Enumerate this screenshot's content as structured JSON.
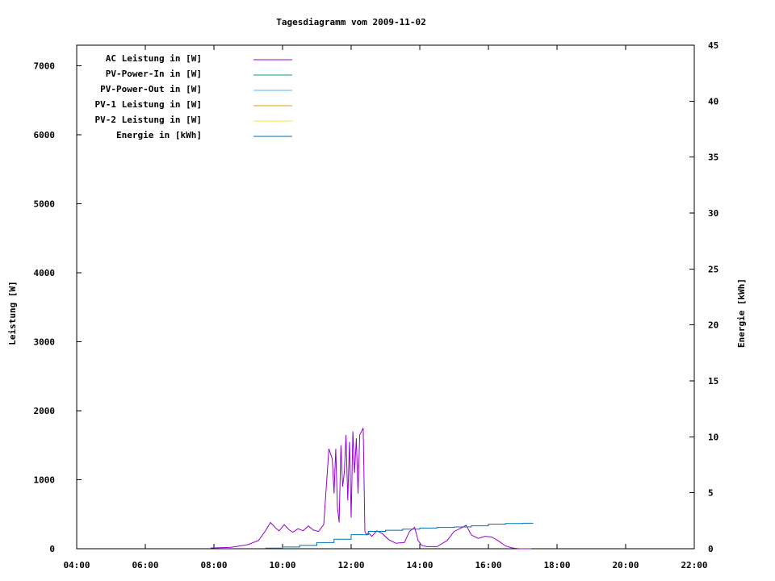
{
  "chart_data": {
    "type": "line",
    "title": "Tagesdiagramm vom 2009-11-02",
    "ylabel": "Leistung [W]",
    "y2label": "Energie [kWh]",
    "x_unit": "hours",
    "xlim": [
      4,
      22
    ],
    "ylim": [
      0,
      7300
    ],
    "y2lim": [
      0,
      45
    ],
    "x_ticks": [
      4,
      6,
      8,
      10,
      12,
      14,
      16,
      18,
      20,
      22
    ],
    "x_tick_labels": [
      "04:00",
      "06:00",
      "08:00",
      "10:00",
      "12:00",
      "14:00",
      "16:00",
      "18:00",
      "20:00",
      "22:00"
    ],
    "y_ticks": [
      0,
      1000,
      2000,
      3000,
      4000,
      5000,
      6000,
      7000
    ],
    "y2_ticks": [
      0,
      5,
      10,
      15,
      20,
      25,
      30,
      35,
      40,
      45
    ],
    "grid": false,
    "legend_position": "top-left",
    "series": [
      {
        "name": "AC Leistung in [W]",
        "axis": "left",
        "color": "#9400d3",
        "x": [
          7.9,
          8.5,
          9.0,
          9.3,
          9.5,
          9.65,
          9.8,
          9.9,
          10.05,
          10.2,
          10.3,
          10.45,
          10.6,
          10.75,
          10.9,
          11.05,
          11.2,
          11.35,
          11.45,
          11.5,
          11.55,
          11.6,
          11.65,
          11.7,
          11.75,
          11.8,
          11.85,
          11.9,
          11.95,
          12.0,
          12.05,
          12.1,
          12.15,
          12.2,
          12.25,
          12.3,
          12.35,
          12.4,
          12.45,
          12.5,
          12.6,
          12.75,
          12.9,
          13.1,
          13.3,
          13.55,
          13.7,
          13.85,
          13.95,
          14.05,
          14.2,
          14.5,
          14.8,
          15.0,
          15.2,
          15.35,
          15.5,
          15.7,
          15.9,
          16.1,
          16.3,
          16.5,
          16.7,
          16.9,
          17.1,
          17.25
        ],
        "y": [
          10,
          20,
          60,
          120,
          260,
          380,
          300,
          260,
          350,
          270,
          240,
          290,
          260,
          330,
          270,
          250,
          350,
          1450,
          1300,
          800,
          1450,
          600,
          380,
          1500,
          900,
          1100,
          1650,
          700,
          1550,
          450,
          1700,
          1100,
          1600,
          800,
          1650,
          1700,
          1750,
          250,
          200,
          230,
          180,
          260,
          220,
          130,
          80,
          90,
          250,
          310,
          120,
          50,
          30,
          30,
          120,
          250,
          300,
          340,
          200,
          150,
          180,
          170,
          110,
          40,
          10,
          0,
          0,
          0
        ]
      },
      {
        "name": "PV-Power-In in [W]",
        "axis": "left",
        "color": "#009e73",
        "x": [],
        "y": []
      },
      {
        "name": "PV-Power-Out in [W]",
        "axis": "left",
        "color": "#56b4e9",
        "x": [],
        "y": []
      },
      {
        "name": "PV-1 Leistung in [W]",
        "axis": "left",
        "color": "#e69f00",
        "x": [],
        "y": []
      },
      {
        "name": "PV-2 Leistung in [W]",
        "axis": "left",
        "color": "#f0e442",
        "x": [],
        "y": []
      },
      {
        "name": "Energie in [kWh]",
        "axis": "right",
        "color": "#0072b2",
        "x": [
          9.5,
          10.0,
          10.5,
          11.0,
          11.5,
          12.0,
          12.5,
          13.0,
          13.5,
          14.0,
          14.5,
          15.0,
          15.5,
          16.0,
          16.5,
          17.0,
          17.3
        ],
        "y": [
          0.05,
          0.15,
          0.3,
          0.55,
          0.85,
          1.25,
          1.55,
          1.65,
          1.75,
          1.85,
          1.9,
          1.95,
          2.05,
          2.2,
          2.25,
          2.28,
          2.3
        ]
      }
    ]
  }
}
